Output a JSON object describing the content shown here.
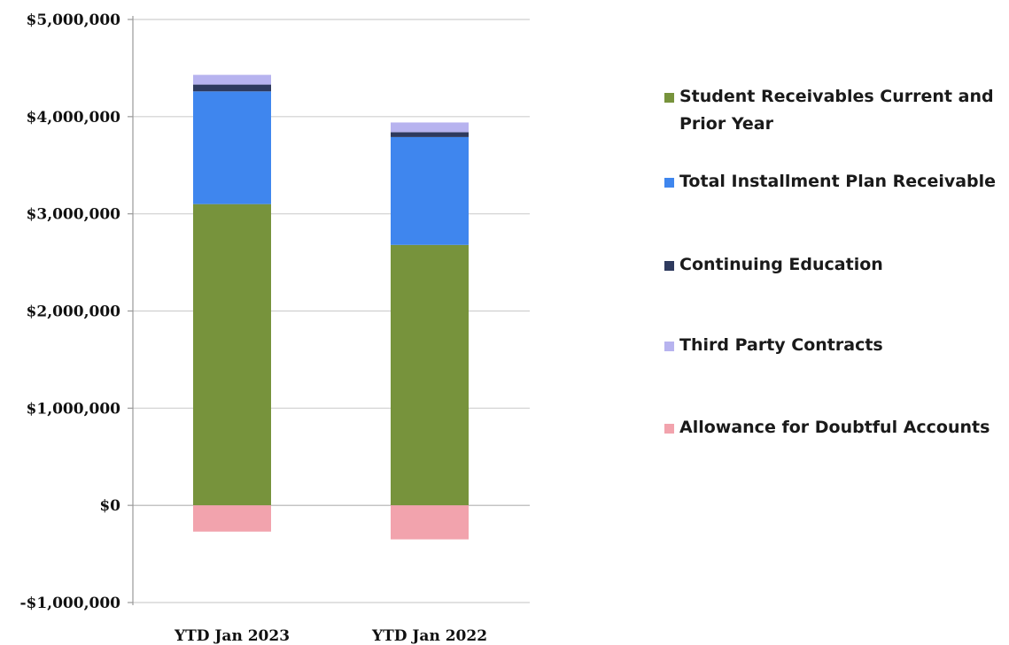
{
  "chart_data": {
    "type": "bar",
    "stacked": true,
    "categories": [
      "YTD Jan 2023",
      "YTD Jan 2022"
    ],
    "series": [
      {
        "name": "Student Receivables Current and Prior Year",
        "color": "#77933c",
        "values": [
          3100000,
          2680000
        ]
      },
      {
        "name": "Total Installment Plan Receivable",
        "color": "#3f86ee",
        "values": [
          1160000,
          1110000
        ]
      },
      {
        "name": "Continuing Education",
        "color": "#2e3a5e",
        "values": [
          70000,
          50000
        ]
      },
      {
        "name": "Third Party Contracts",
        "color": "#b7b3ef",
        "values": [
          100000,
          100000
        ]
      },
      {
        "name": "Allowance for Doubtful Accounts",
        "color": "#f2a3ad",
        "values": [
          -270000,
          -350000
        ]
      }
    ],
    "ylim": [
      -1000000,
      5000000
    ],
    "yticks": [
      5000000,
      4000000,
      3000000,
      2000000,
      1000000,
      0,
      -1000000
    ],
    "ytick_labels": [
      "$5,000,000",
      "$4,000,000",
      "$3,000,000",
      "$2,000,000",
      "$1,000,000",
      "$0",
      "-$1,000,000"
    ],
    "grid": true,
    "legend_position": "right"
  }
}
